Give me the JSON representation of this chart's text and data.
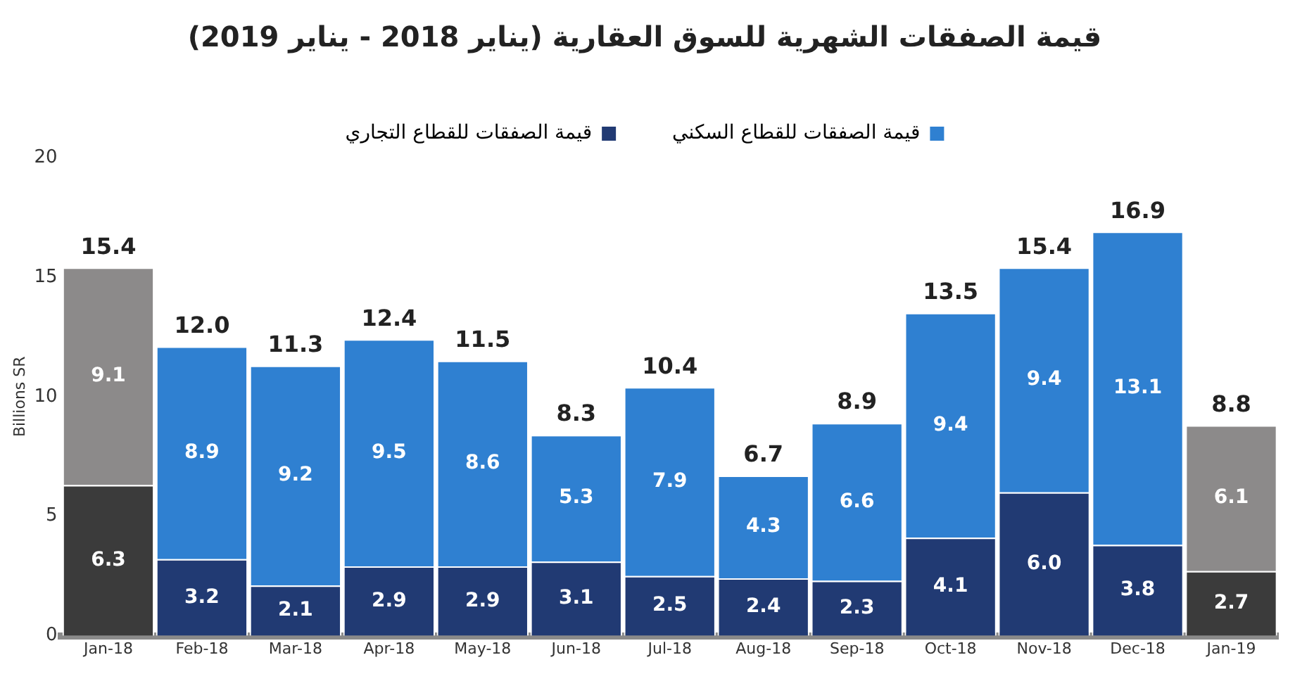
{
  "chart_data": {
    "type": "bar",
    "stacked": true,
    "title": "قيمة الصفقات الشهرية للسوق العقارية (يناير 2018 - يناير 2019)",
    "ylabel": "Billions SR",
    "categories": [
      "Jan-18",
      "Feb-18",
      "Mar-18",
      "Apr-18",
      "May-18",
      "Jun-18",
      "Jul-18",
      "Aug-18",
      "Sep-18",
      "Oct-18",
      "Nov-18",
      "Dec-18",
      "Jan-19"
    ],
    "series": [
      {
        "name": "قيمة الصفقات للقطاع التجاري",
        "color": "#213a73",
        "colors": [
          "#3b3b3b",
          "#213a73",
          "#213a73",
          "#213a73",
          "#213a73",
          "#213a73",
          "#213a73",
          "#213a73",
          "#213a73",
          "#213a73",
          "#213a73",
          "#213a73",
          "#3b3b3b"
        ],
        "values": [
          6.3,
          3.2,
          2.1,
          2.9,
          2.9,
          3.1,
          2.5,
          2.4,
          2.3,
          4.1,
          6.0,
          3.8,
          2.7
        ],
        "value_labels": [
          "6.3",
          "3.2",
          "2.1",
          "2.9",
          "2.9",
          "3.1",
          "2.5",
          "2.4",
          "2.3",
          "4.1",
          "6.0",
          "3.8",
          "2.7"
        ]
      },
      {
        "name": "قيمة الصفقات للقطاع السكني",
        "color": "#2f80d1",
        "colors": [
          "#8c8a8a",
          "#2f80d1",
          "#2f80d1",
          "#2f80d1",
          "#2f80d1",
          "#2f80d1",
          "#2f80d1",
          "#2f80d1",
          "#2f80d1",
          "#2f80d1",
          "#2f80d1",
          "#2f80d1",
          "#8c8a8a"
        ],
        "values": [
          9.1,
          8.9,
          9.2,
          9.5,
          8.6,
          5.3,
          7.9,
          4.3,
          6.6,
          9.4,
          9.4,
          13.1,
          6.1
        ],
        "value_labels": [
          "9.1",
          "8.9",
          "9.2",
          "9.5",
          "8.6",
          "5.3",
          "7.9",
          "4.3",
          "6.6",
          "9.4",
          "9.4",
          "13.1",
          "6.1"
        ]
      }
    ],
    "totals": [
      "15.4",
      "12.0",
      "11.3",
      "12.4",
      "11.5",
      "8.3",
      "10.4",
      "6.7",
      "8.9",
      "13.5",
      "15.4",
      "16.9",
      "8.8"
    ],
    "ylim": [
      0,
      20
    ],
    "yticks": [
      0,
      5,
      10,
      15,
      20
    ],
    "grid": false,
    "legend": "top"
  }
}
